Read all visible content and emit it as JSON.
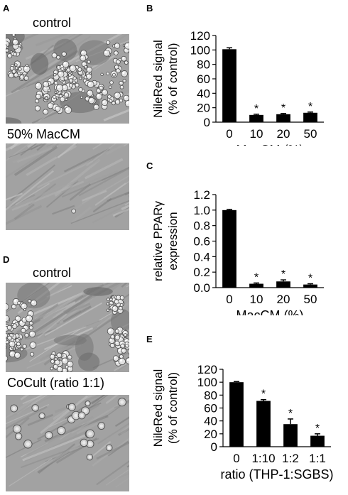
{
  "figure": {
    "panels": {
      "A": {
        "letter": "A",
        "images": [
          {
            "caption": "control",
            "icon": "micrograph-differentiated-adipocytes"
          },
          {
            "caption": "50% MacCM",
            "icon": "micrograph-fibroblast-like-cells"
          }
        ]
      },
      "D": {
        "letter": "D",
        "images": [
          {
            "caption": "control",
            "icon": "micrograph-differentiated-adipocytes"
          },
          {
            "caption": "CoCult (ratio 1:1)",
            "icon": "micrograph-cocultured-cells"
          }
        ]
      }
    }
  },
  "chart_data": [
    {
      "panel": "B",
      "type": "bar",
      "categories": [
        "0",
        "10",
        "20",
        "50"
      ],
      "values": [
        101,
        10,
        11,
        13
      ],
      "errors": [
        2,
        1,
        1,
        1
      ],
      "significance": [
        "",
        "*",
        "*",
        "*"
      ],
      "ylabel": [
        "NileRed signal",
        "(% of control)"
      ],
      "xlabel": "MacCM (%)",
      "ylim": [
        0,
        120
      ],
      "yticks": [
        "0",
        "20",
        "40",
        "60",
        "80",
        "100",
        "120"
      ],
      "bar_color": "#000000"
    },
    {
      "panel": "C",
      "type": "bar",
      "categories": [
        "0",
        "10",
        "20",
        "50"
      ],
      "values": [
        1.0,
        0.05,
        0.08,
        0.04
      ],
      "errors": [
        0.01,
        0.01,
        0.02,
        0.01
      ],
      "significance": [
        "",
        "*",
        "*",
        "*"
      ],
      "ylabel": [
        "relative PPARγ",
        "expression"
      ],
      "xlabel": "MacCM (%)",
      "ylim": [
        0,
        1.2
      ],
      "yticks": [
        "0.0",
        "0.2",
        "0.4",
        "0.6",
        "0.8",
        "1.0",
        "1.2"
      ],
      "bar_color": "#000000"
    },
    {
      "panel": "E",
      "type": "bar",
      "categories": [
        "0",
        "1:10",
        "1:2",
        "1:1"
      ],
      "values": [
        100,
        71,
        35,
        17
      ],
      "errors": [
        1,
        2,
        8,
        3
      ],
      "significance": [
        "",
        "*",
        "*",
        "*"
      ],
      "ylabel": [
        "NileRed signal",
        "(% of control)"
      ],
      "xlabel": "ratio (THP-1:SGBS)",
      "ylim": [
        0,
        120
      ],
      "yticks": [
        "0",
        "20",
        "40",
        "60",
        "80",
        "100",
        "120"
      ],
      "bar_color": "#000000"
    }
  ]
}
